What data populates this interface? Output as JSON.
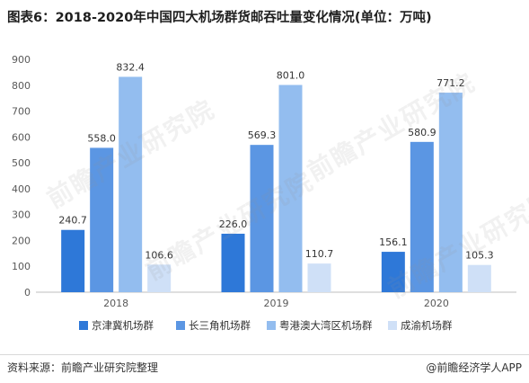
{
  "title": "图表6：2018-2020年中国四大机场群货邮吞吐量变化情况(单位：万吨)",
  "watermark": "前瞻产业研究院",
  "source": "资料来源：前瞻产业研究院整理",
  "brand": "@前瞻经济学人APP",
  "colors": [
    "#2e78d8",
    "#5b96e3",
    "#93bdef",
    "#cfe0f7"
  ],
  "chart_data": {
    "type": "bar",
    "title": "图表6：2018-2020年中国四大机场群货邮吞吐量变化情况(单位：万吨)",
    "categories": [
      "2018",
      "2019",
      "2020"
    ],
    "series": [
      {
        "name": "京津冀机场群",
        "values": [
          240.7,
          226.0,
          156.1
        ]
      },
      {
        "name": "长三角机场群",
        "values": [
          558.0,
          569.3,
          580.9
        ]
      },
      {
        "name": "粤港澳大湾区机场群",
        "values": [
          832.4,
          801.0,
          771.2
        ]
      },
      {
        "name": "成渝机场群",
        "values": [
          106.6,
          110.7,
          105.3
        ]
      }
    ],
    "data_labels": [
      [
        "240.7",
        "226.0",
        "156.1"
      ],
      [
        "558.0",
        "569.3",
        "580.9"
      ],
      [
        "832.4",
        "801.0",
        "771.2"
      ],
      [
        "106.6",
        "110.7",
        "105.3"
      ]
    ],
    "y_ticks": [
      "0",
      "100",
      "200",
      "300",
      "400",
      "500",
      "600",
      "700",
      "800",
      "900"
    ],
    "ylim": [
      0,
      900
    ],
    "grid": false,
    "legend": "bottom"
  }
}
